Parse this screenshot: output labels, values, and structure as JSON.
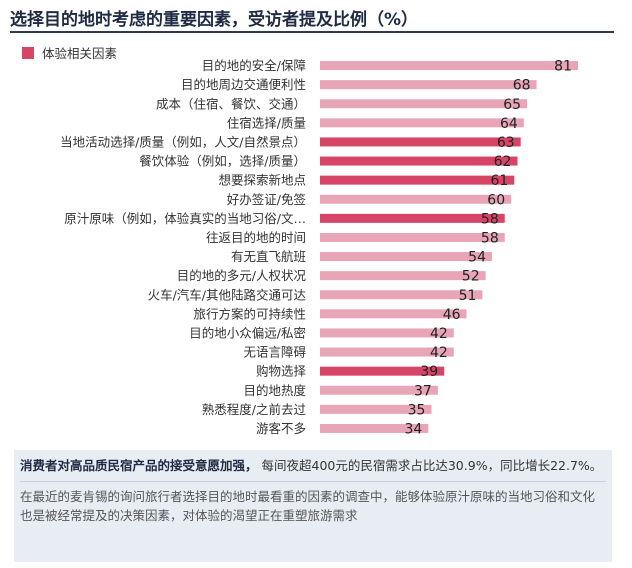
{
  "title": "选择目的地时考虑的重要因素，受访者提及比例（%）",
  "legend": {
    "label": "体验相关因素",
    "color": "#d64565"
  },
  "colors": {
    "highlight": "#d64565",
    "normal": "#e8a5b8"
  },
  "chart_data": {
    "type": "bar",
    "orientation": "horizontal",
    "categories": [
      "目的地的安全/保障",
      "目的地周边交通便利性",
      "成本（住宿、餐饮、交通）",
      "住宿选择/质量",
      "当地活动选择/质量（例如，人文/自然景点）",
      "餐饮体验（例如，选择/质量）",
      "想要探索新地点",
      "好办签证/免签",
      "原汁原味（例如，体验真实的当地习俗/文…",
      "往返目的地的时间",
      "有无直飞航班",
      "目的地的多元/人权状况",
      "火车/汽车/其他陆路交通可达",
      "旅行方案的可持续性",
      "目的地小众偏远/私密",
      "无语言障碍",
      "购物选择",
      "目的地热度",
      "熟悉程度/之前去过",
      "游客不多"
    ],
    "values": [
      81,
      68,
      65,
      64,
      63,
      62,
      61,
      60,
      58,
      58,
      54,
      52,
      51,
      46,
      42,
      42,
      39,
      37,
      35,
      34
    ],
    "experience_related": [
      false,
      false,
      false,
      false,
      true,
      true,
      true,
      false,
      true,
      false,
      false,
      false,
      false,
      false,
      false,
      false,
      true,
      false,
      false,
      false
    ],
    "xlim": [
      0,
      81
    ]
  },
  "summary": {
    "bold": "消费者对高品质民宿产品的接受意愿加强，",
    "rest": "每间夜超400元的民宿需求占比达30.9%，同比增长22.7%。",
    "paragraph": "在最近的麦肯锡的询问旅行者选择目的地时最看重的因素的调查中，能够体验原汁原味的当地习俗和文化也是被经常提及的决策因素，对体验的渴望正在重塑旅游需求"
  }
}
